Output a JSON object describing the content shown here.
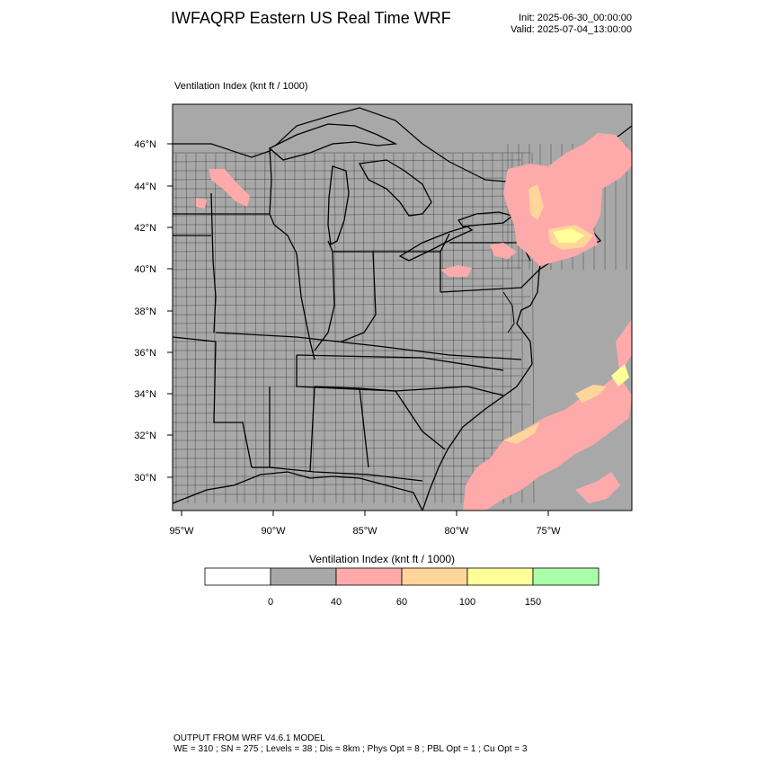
{
  "header": {
    "title": "IWFAQRP Eastern US Real Time WRF",
    "init": "Init: 2025-06-30_00:00:00",
    "valid": "Valid: 2025-07-04_13:00:00"
  },
  "map": {
    "field_label": "Ventilation Index   (knt ft / 1000)",
    "background_color": "#a8a8a8",
    "lat_ticks": [
      "46°N",
      "44°N",
      "42°N",
      "40°N",
      "38°N",
      "36°N",
      "34°N",
      "32°N",
      "30°N"
    ],
    "lon_ticks": [
      "95°W",
      "90°W",
      "85°W",
      "80°W",
      "75°W"
    ]
  },
  "colorbar": {
    "title": "Ventilation Index  (knt ft / 1000)",
    "colors": [
      "#ffffff",
      "#a8a8a8",
      "#ffaaaa",
      "#ffd59a",
      "#ffff99",
      "#aaffaa"
    ],
    "labels": [
      "0",
      "40",
      "60",
      "100",
      "150"
    ]
  },
  "footer": {
    "line1": "OUTPUT FROM WRF V4.6.1 MODEL",
    "line2": "WE = 310 ; SN = 275 ; Levels = 38 ; Dis = 8km ; Phys Opt = 8 ; PBL Opt = 1 ; Cu Opt = 3"
  }
}
